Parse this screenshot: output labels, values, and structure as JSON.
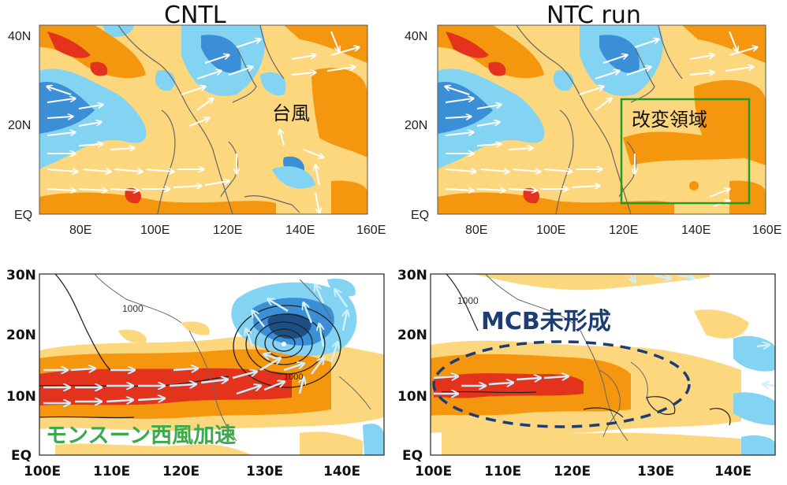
{
  "panels": [
    {
      "id": "top-left",
      "title": "CNTL",
      "lat_labels": [
        "40N",
        "20N",
        "EQ"
      ],
      "lon_labels": [
        "80E",
        "100E",
        "120E",
        "140E",
        "160E"
      ],
      "annotation": "台風"
    },
    {
      "id": "top-right",
      "title": "NTC run",
      "lat_labels": [
        "40N",
        "20N",
        "EQ"
      ],
      "lon_labels": [
        "80E",
        "100E",
        "120E",
        "140E",
        "160E"
      ],
      "annotation": "改変領域"
    },
    {
      "id": "bottom-left",
      "lat_labels": [
        "30N",
        "20N",
        "10N",
        "EQ"
      ],
      "lon_labels": [
        "100E",
        "110E",
        "120E",
        "130E",
        "140E"
      ],
      "contour_label": "1000",
      "contour_label_2": "1000",
      "annotation": "モンスーン西風加速"
    },
    {
      "id": "bottom-right",
      "lat_labels": [
        "30N",
        "20N",
        "10N",
        "EQ"
      ],
      "lon_labels": [
        "100E",
        "110E",
        "120E",
        "130E",
        "140E"
      ],
      "contour_label": "1000",
      "annotation": "MCB未形成"
    }
  ],
  "colors": {
    "shade_light_orange": "#fcd77e",
    "shade_orange": "#f5960f",
    "shade_red": "#e4331c",
    "shade_light_blue": "#83d3f3",
    "shade_blue": "#3b8fd6",
    "shade_dark_blue": "#1b4f86",
    "coast": "#555555",
    "vector": "#ffffff",
    "box_green": "#239b2a",
    "annotation_green": "#3caa4c",
    "annotation_navy": "#1c3d73"
  }
}
